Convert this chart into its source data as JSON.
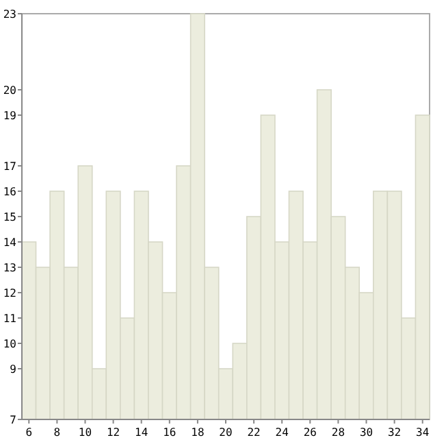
{
  "chart_data": {
    "type": "bar",
    "x": [
      6,
      7,
      8,
      9,
      10,
      11,
      12,
      13,
      14,
      15,
      16,
      17,
      18,
      19,
      20,
      21,
      22,
      23,
      24,
      25,
      26,
      27,
      28,
      29,
      30,
      31,
      32,
      33,
      34
    ],
    "values": [
      14,
      13,
      16,
      13,
      17,
      9,
      16,
      11,
      16,
      14,
      12,
      17,
      23,
      13,
      9,
      10,
      15,
      19,
      14,
      16,
      14,
      20,
      15,
      13,
      12,
      16,
      16,
      11,
      19
    ],
    "color": "#ecedde",
    "xlim": [
      5.5,
      34.5
    ],
    "xticks": [
      6,
      8,
      10,
      12,
      14,
      16,
      18,
      20,
      22,
      24,
      26,
      28,
      30,
      32,
      34
    ],
    "ylim": [
      7,
      23
    ],
    "yticks": [
      7,
      9,
      10,
      11,
      12,
      13,
      14,
      15,
      16,
      17,
      19,
      20,
      23
    ],
    "grid": false
  }
}
